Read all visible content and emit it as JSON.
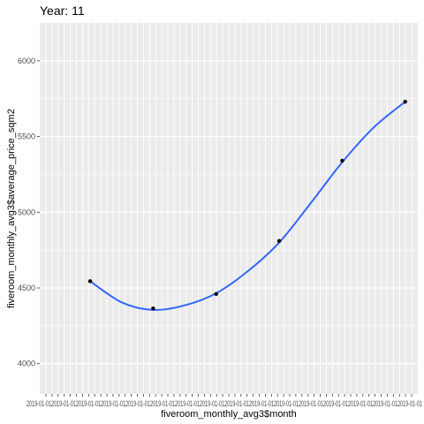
{
  "chart_data": {
    "type": "line",
    "title": "Year: 11",
    "xlabel": "fiveroom_monthly_avg3$month",
    "ylabel": "fiveroom_monthly_avg3$average_price_sqm2",
    "ylim": [
      3800,
      6250
    ],
    "yticks": [
      4000,
      4500,
      5000,
      5500,
      6000
    ],
    "x_tick_label_text": "2019-01-012019-01-012019-01-012019-01-012019-01-012019-01-012019-01-012019-01-012019-01-012019-01-012019-01-012019-01-012019-01-012019-01-012019-01-012019-01-01",
    "grid": true,
    "legend": "none",
    "series": [
      {
        "kind": "points",
        "x": [
          1,
          2,
          3,
          4,
          5,
          6
        ],
        "values": [
          4545,
          4365,
          4460,
          4810,
          5340,
          5730
        ]
      },
      {
        "kind": "smooth",
        "x": [
          1,
          1.5,
          2,
          2.5,
          3,
          3.5,
          4,
          4.5,
          5,
          5.5,
          6
        ],
        "values": [
          4545,
          4405,
          4355,
          4385,
          4465,
          4610,
          4800,
          5060,
          5330,
          5560,
          5730
        ]
      }
    ],
    "colors": {
      "panel_background": "#ebebeb",
      "grid_major": "#ffffff",
      "points": "#000000",
      "smooth_line": "#3366ff"
    }
  }
}
